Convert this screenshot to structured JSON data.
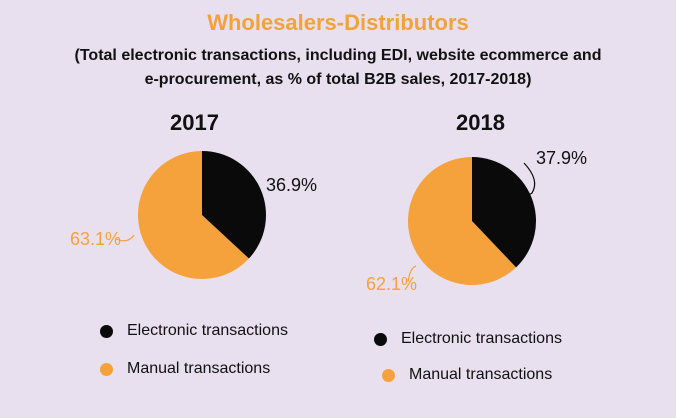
{
  "title": "Wholesalers-Distributors",
  "subtitle_line1": "(Total electronic transactions, including EDI, website ecommerce and",
  "subtitle_line2": "e-procurement, as % of total B2B sales, 2017-2018)",
  "colors": {
    "electronic": "#0a0a0a",
    "manual": "#f5a23c",
    "title": "#f2a23a"
  },
  "chart_data": [
    {
      "type": "pie",
      "title": "2017",
      "slices": [
        {
          "label": "Electronic transactions",
          "value": 36.9,
          "display": "36.9%"
        },
        {
          "label": "Manual transactions",
          "value": 63.1,
          "display": "63.1%"
        }
      ],
      "legend": [
        "Electronic transactions",
        "Manual transactions"
      ]
    },
    {
      "type": "pie",
      "title": "2018",
      "slices": [
        {
          "label": "Electronic transactions",
          "value": 37.9,
          "display": "37.9%"
        },
        {
          "label": "Manual transactions",
          "value": 62.1,
          "display": "62.1%"
        }
      ],
      "legend": [
        "Electronic transactions",
        "Manual transactions"
      ]
    }
  ]
}
